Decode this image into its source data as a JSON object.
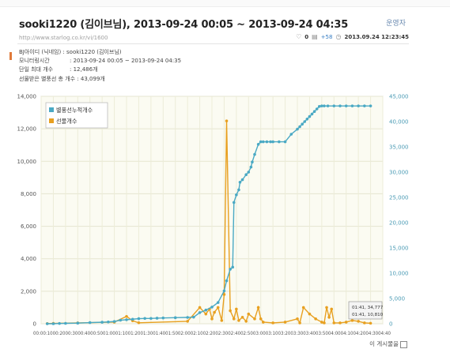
{
  "header": {
    "title": "sooki1220 (김이브님), 2013-09-24 00:05 ~ 2013-09-24 04:35",
    "admin_link": "운영자",
    "url": "http://www.starlog.co.kr/vi/1600",
    "comment_count": "0",
    "view_count": "+58",
    "timestamp": "2013.09.24 12:23:45"
  },
  "info": {
    "rows": [
      {
        "label": "BJ아이디 (닉네임) :",
        "value": "sooki1220 (김이브님)"
      },
      {
        "label": "모니터링시간",
        "value": ": 2013-09-24 00:05 ~ 2013-09-24 04:35"
      },
      {
        "label": "단일 최대 개수",
        "value": ": 12,486개"
      },
      {
        "label": "선물받은 별풍선 총 개수 :",
        "value": "43,099개"
      }
    ]
  },
  "chart_data": {
    "type": "line",
    "legend": [
      "별풍선누적개수",
      "선물개수"
    ],
    "legend_position": "top-left",
    "colors": {
      "cumulative": "#4aa9c4",
      "gift": "#e8a020"
    },
    "y_left": {
      "ticks": [
        0,
        2000,
        4000,
        6000,
        8000,
        10000,
        12000,
        14000
      ],
      "labels": [
        "0",
        "2,000",
        "4,000",
        "6,000",
        "8,000",
        "10,000",
        "12,000",
        "14,000"
      ],
      "range": [
        0,
        14000
      ]
    },
    "y_right": {
      "ticks": [
        0,
        5000,
        10000,
        15000,
        20000,
        25000,
        30000,
        35000,
        40000,
        45000
      ],
      "labels": [
        "0",
        "5,000",
        "10,000",
        "15,000",
        "20,000",
        "25,000",
        "30,000",
        "35,000",
        "40,000",
        "45,000"
      ],
      "range": [
        0,
        45000
      ]
    },
    "x_ticks": [
      "00:00",
      "00:10",
      "00:20",
      "00:30",
      "00:40",
      "00:50",
      "01:00",
      "01:10",
      "01:20",
      "01:30",
      "01:40",
      "01:50",
      "02:00",
      "02:10",
      "02:20",
      "02:30",
      "02:40",
      "02:50",
      "03:00",
      "03:10",
      "03:20",
      "03:30",
      "03:40",
      "03:50",
      "04:00",
      "04:10",
      "04:20",
      "04:30",
      "04:40"
    ],
    "x_tick_labels": "00:00:1000:2000:3000:4000:5001:0001:1001:2001:3001:4001:5002:0002:1002:2002:3002:4002:5003:0003:1003:2003:3003:4003:5004:0004:1004:2004:3004:40",
    "x_range_minutes": [
      0,
      280
    ],
    "cumulative": {
      "minutes": [
        5,
        10,
        15,
        20,
        30,
        40,
        50,
        55,
        60,
        65,
        70,
        75,
        80,
        85,
        90,
        95,
        100,
        110,
        120,
        125,
        130,
        135,
        140,
        145,
        150,
        152,
        155,
        157,
        158,
        160,
        162,
        163,
        165,
        168,
        170,
        172,
        173,
        175,
        178,
        180,
        182,
        185,
        188,
        190,
        195,
        200,
        205,
        210,
        212,
        214,
        216,
        218,
        220,
        222,
        224,
        226,
        228,
        230,
        232,
        235,
        240,
        245,
        250,
        255,
        260,
        265,
        270
      ],
      "values": [
        0,
        0,
        50,
        80,
        120,
        220,
        300,
        350,
        450,
        700,
        800,
        900,
        1000,
        1050,
        1050,
        1100,
        1150,
        1200,
        1250,
        1300,
        2200,
        2700,
        3300,
        4200,
        6500,
        8500,
        10800,
        11200,
        24000,
        25500,
        26500,
        28000,
        28500,
        29500,
        30000,
        31000,
        32000,
        33500,
        35500,
        36000,
        36000,
        36000,
        36000,
        36000,
        36000,
        36000,
        37500,
        38500,
        39000,
        39500,
        40000,
        40500,
        41000,
        41500,
        42000,
        42500,
        43000,
        43099,
        43099,
        43099,
        43099,
        43099,
        43099,
        43099,
        43099,
        43099,
        43099
      ]
    },
    "gift": {
      "minutes": [
        5,
        10,
        30,
        60,
        70,
        75,
        80,
        120,
        130,
        135,
        138,
        140,
        142,
        145,
        148,
        150,
        152,
        155,
        158,
        160,
        162,
        165,
        168,
        170,
        175,
        178,
        180,
        182,
        190,
        200,
        210,
        212,
        215,
        220,
        225,
        230,
        232,
        234,
        236,
        238,
        240,
        245,
        250,
        255,
        260,
        265,
        270
      ],
      "values": [
        10,
        20,
        50,
        100,
        450,
        180,
        60,
        150,
        1000,
        600,
        900,
        300,
        700,
        1000,
        200,
        1800,
        12486,
        800,
        300,
        900,
        200,
        400,
        150,
        600,
        300,
        1000,
        300,
        100,
        50,
        100,
        300,
        50,
        1000,
        600,
        300,
        100,
        50,
        1000,
        400,
        900,
        50,
        50,
        100,
        200,
        150,
        50,
        30
      ]
    },
    "tooltip": {
      "line1": "01:41, 34,777",
      "line2": "01:41, 10,810"
    }
  },
  "footer": {
    "list_link": "이 게시물을"
  }
}
